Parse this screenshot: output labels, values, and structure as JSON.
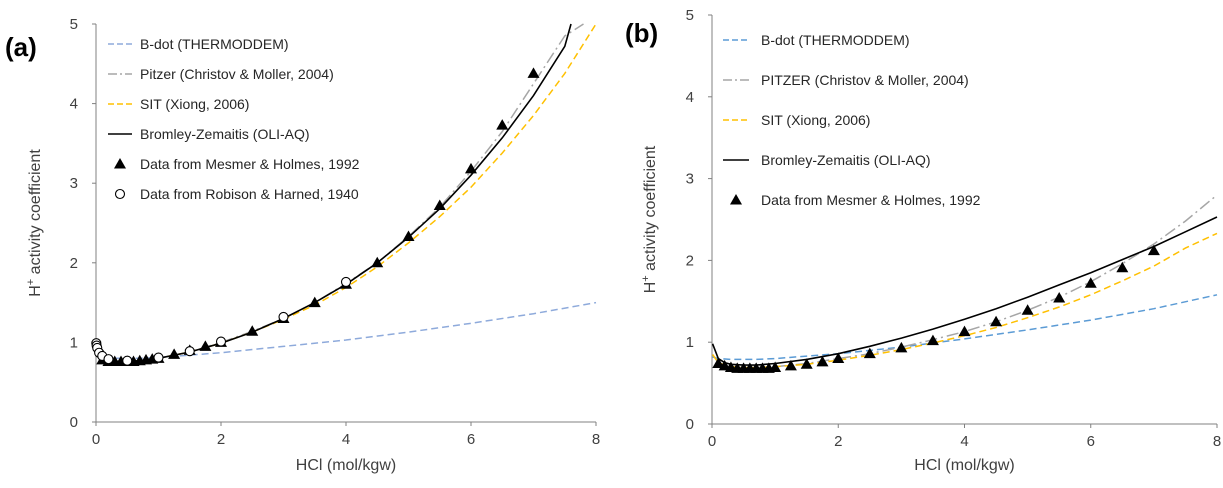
{
  "figure": {
    "colors": {
      "bdot": "#8eaadb",
      "bdot_b": "#5b9bd5",
      "pitzer": "#a6a6a6",
      "sit": "#ffc000",
      "bz": "#000000",
      "marker": "#000000"
    }
  },
  "chart_data": [
    {
      "panel_label": "(a)",
      "type": "line",
      "title": "",
      "xlabel": "HCl (mol/kgw)",
      "ylabel_main": "H",
      "ylabel_sup": "+",
      "ylabel_rest": " activity coefficient",
      "xlim": [
        0,
        8
      ],
      "ylim": [
        0,
        5
      ],
      "xticks": [
        "0",
        "2",
        "4",
        "6",
        "8"
      ],
      "yticks": [
        "0",
        "1",
        "2",
        "3",
        "4",
        "5"
      ],
      "legend_position": "top-left",
      "series": [
        {
          "key": "bdot",
          "name": "B-dot (THERMODDEM)",
          "style": "dashed",
          "color": "#8eaadb",
          "x": [
            0.01,
            0.05,
            0.1,
            0.2,
            0.3,
            0.5,
            0.7,
            1,
            1.5,
            2,
            3,
            4,
            5,
            6,
            7,
            8
          ],
          "y": [
            0.94,
            0.87,
            0.84,
            0.81,
            0.8,
            0.8,
            0.8,
            0.81,
            0.84,
            0.87,
            0.95,
            1.03,
            1.13,
            1.24,
            1.36,
            1.5
          ]
        },
        {
          "key": "pitzer",
          "name": "Pitzer (Christov & Moller, 2004)",
          "style": "dashdot",
          "color": "#a6a6a6",
          "x": [
            0.01,
            0.05,
            0.1,
            0.2,
            0.3,
            0.5,
            0.7,
            1,
            1.5,
            2,
            2.5,
            3,
            3.5,
            4,
            4.5,
            5,
            5.5,
            6,
            6.5,
            7,
            7.5,
            7.8
          ],
          "y": [
            0.91,
            0.84,
            0.8,
            0.77,
            0.76,
            0.76,
            0.77,
            0.8,
            0.88,
            1.0,
            1.14,
            1.3,
            1.5,
            1.74,
            2.0,
            2.33,
            2.7,
            3.15,
            3.65,
            4.25,
            4.85,
            5.0
          ]
        },
        {
          "key": "sit",
          "name": "SIT (Xiong, 2006)",
          "style": "dashed",
          "color": "#ffc000",
          "x": [
            0.01,
            0.05,
            0.1,
            0.2,
            0.3,
            0.5,
            0.7,
            1,
            1.5,
            2,
            2.5,
            3,
            3.5,
            4,
            4.5,
            5,
            5.5,
            6,
            6.5,
            7,
            7.5,
            8
          ],
          "y": [
            0.91,
            0.84,
            0.8,
            0.77,
            0.76,
            0.76,
            0.77,
            0.8,
            0.88,
            0.99,
            1.13,
            1.29,
            1.47,
            1.69,
            1.95,
            2.25,
            2.58,
            2.95,
            3.38,
            3.85,
            4.38,
            5.0
          ]
        },
        {
          "key": "bz",
          "name": "Bromley-Zemaitis (OLI-AQ)",
          "style": "solid",
          "color": "#000000",
          "x": [
            0.01,
            0.05,
            0.1,
            0.2,
            0.3,
            0.5,
            0.7,
            1,
            1.5,
            2,
            2.5,
            3,
            3.5,
            4,
            4.5,
            5,
            5.5,
            6,
            6.5,
            7,
            7.5,
            7.6
          ],
          "y": [
            0.91,
            0.84,
            0.8,
            0.77,
            0.76,
            0.76,
            0.77,
            0.8,
            0.88,
            0.99,
            1.13,
            1.3,
            1.5,
            1.73,
            2.0,
            2.32,
            2.68,
            3.1,
            3.57,
            4.1,
            4.72,
            5.0
          ]
        },
        {
          "key": "mesmer",
          "name": "Data from Mesmer & Holmes, 1992",
          "style": "triangle",
          "color": "#000000",
          "x": [
            0.1,
            0.2,
            0.3,
            0.4,
            0.5,
            0.6,
            0.7,
            0.8,
            0.9,
            1.0,
            1.25,
            1.5,
            1.75,
            2,
            2.5,
            3,
            3.5,
            4,
            4.5,
            5,
            5.5,
            6,
            6.5,
            7
          ],
          "y": [
            0.78,
            0.76,
            0.76,
            0.76,
            0.76,
            0.76,
            0.77,
            0.78,
            0.79,
            0.8,
            0.85,
            0.9,
            0.95,
            1.0,
            1.14,
            1.3,
            1.5,
            1.73,
            2.0,
            2.33,
            2.72,
            3.18,
            3.73,
            4.38
          ]
        },
        {
          "key": "robinson",
          "name": "Data from Robison & Harned, 1940",
          "style": "circle",
          "color": "#000000",
          "x": [
            0.005,
            0.01,
            0.02,
            0.05,
            0.1,
            0.2,
            0.5,
            1,
            1.5,
            2,
            3,
            4
          ],
          "y": [
            0.99,
            0.96,
            0.93,
            0.87,
            0.83,
            0.79,
            0.77,
            0.81,
            0.89,
            1.01,
            1.32,
            1.76
          ]
        }
      ]
    },
    {
      "panel_label": "(b)",
      "type": "line",
      "title": "",
      "xlabel": "HCl (mol/kgw)",
      "ylabel_main": "H",
      "ylabel_sup": "+",
      "ylabel_rest": " activity coefficient",
      "xlim": [
        0,
        8
      ],
      "ylim": [
        0,
        5
      ],
      "xticks": [
        "0",
        "2",
        "4",
        "6",
        "8"
      ],
      "yticks": [
        "0",
        "1",
        "2",
        "3",
        "4",
        "5"
      ],
      "legend_position": "top-left",
      "series": [
        {
          "key": "bdot",
          "name": "B-dot (THERMODDEM)",
          "style": "dashed",
          "color": "#5b9bd5",
          "x": [
            0.01,
            0.1,
            0.3,
            0.5,
            0.7,
            1,
            1.5,
            2,
            3,
            4,
            5,
            6,
            7,
            8
          ],
          "y": [
            0.82,
            0.8,
            0.79,
            0.79,
            0.79,
            0.8,
            0.83,
            0.86,
            0.94,
            1.04,
            1.15,
            1.27,
            1.41,
            1.58
          ]
        },
        {
          "key": "pitzer",
          "name": "PITZER (Christov & Moller, 2004)",
          "style": "dashdot",
          "color": "#a6a6a6",
          "x": [
            0.01,
            0.1,
            0.2,
            0.3,
            0.5,
            0.7,
            1,
            1.5,
            2,
            2.5,
            3,
            3.5,
            4,
            4.5,
            5,
            5.5,
            6,
            6.5,
            7,
            7.5,
            8
          ],
          "y": [
            0.85,
            0.75,
            0.72,
            0.7,
            0.69,
            0.69,
            0.7,
            0.74,
            0.8,
            0.86,
            0.94,
            1.03,
            1.13,
            1.25,
            1.39,
            1.55,
            1.74,
            1.96,
            2.2,
            2.48,
            2.8
          ]
        },
        {
          "key": "sit",
          "name": "SIT (Xiong, 2006)",
          "style": "dashed",
          "color": "#ffc000",
          "x": [
            0.01,
            0.1,
            0.2,
            0.3,
            0.5,
            0.7,
            1,
            1.5,
            2,
            2.5,
            3,
            3.5,
            4,
            4.5,
            5,
            5.5,
            6,
            6.5,
            7,
            7.5,
            8
          ],
          "y": [
            0.85,
            0.75,
            0.72,
            0.7,
            0.69,
            0.69,
            0.7,
            0.73,
            0.78,
            0.84,
            0.91,
            0.99,
            1.08,
            1.18,
            1.3,
            1.43,
            1.58,
            1.75,
            1.93,
            2.15,
            2.33
          ]
        },
        {
          "key": "bz",
          "name": "Bromley-Zemaitis (OLI-AQ)",
          "style": "solid",
          "color": "#000000",
          "x": [
            0.01,
            0.1,
            0.2,
            0.3,
            0.5,
            0.7,
            1,
            1.5,
            2,
            2.5,
            3,
            3.5,
            4,
            4.5,
            5,
            5.5,
            6,
            6.5,
            7,
            7.5,
            8
          ],
          "y": [
            0.98,
            0.8,
            0.75,
            0.73,
            0.72,
            0.72,
            0.74,
            0.79,
            0.86,
            0.95,
            1.05,
            1.16,
            1.28,
            1.41,
            1.55,
            1.7,
            1.85,
            2.01,
            2.17,
            2.35,
            2.53
          ]
        },
        {
          "key": "mesmer",
          "name": "Data from Mesmer & Holmes, 1992",
          "style": "triangle",
          "color": "#000000",
          "x": [
            0.1,
            0.2,
            0.3,
            0.4,
            0.5,
            0.6,
            0.7,
            0.8,
            0.9,
            1.0,
            1.25,
            1.5,
            1.75,
            2,
            2.5,
            3,
            3.5,
            4,
            4.5,
            5,
            5.5,
            6,
            6.5,
            7
          ],
          "y": [
            0.74,
            0.71,
            0.69,
            0.68,
            0.68,
            0.68,
            0.68,
            0.68,
            0.68,
            0.69,
            0.71,
            0.73,
            0.76,
            0.8,
            0.86,
            0.93,
            1.02,
            1.13,
            1.25,
            1.39,
            1.54,
            1.72,
            1.91,
            2.12
          ]
        }
      ]
    }
  ]
}
